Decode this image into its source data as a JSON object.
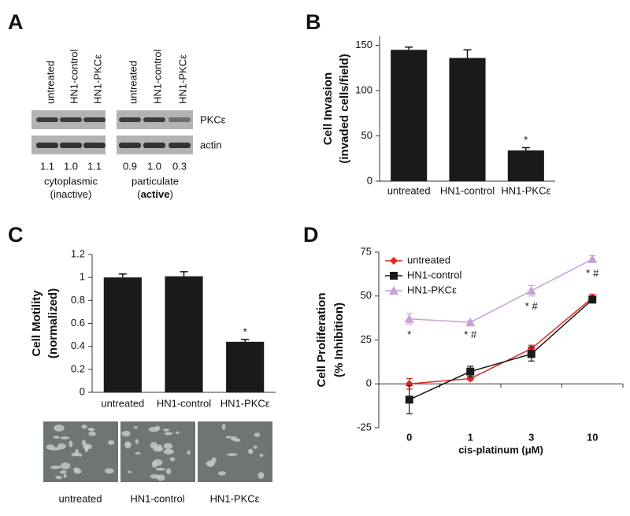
{
  "blot": {
    "panel": "A",
    "lanes": [
      "untreated",
      "HN1-control",
      "HN1-PKCε",
      "untreated",
      "HN1-control",
      "HN1-PKCε"
    ],
    "rows": [
      "PKCε",
      "actin"
    ],
    "ratios": [
      "1.1",
      "1.0",
      "1.1",
      "0.9",
      "1.0",
      "0.3"
    ],
    "groups": [
      {
        "name": "cytoplasmic",
        "state": [
          {
            "text": "(inactive)",
            "bold": false
          }
        ]
      },
      {
        "name": "particulate",
        "state": [
          {
            "text": "(",
            "bold": false
          },
          {
            "text": "active",
            "bold": true
          },
          {
            "text": ")",
            "bold": false
          }
        ]
      }
    ]
  },
  "chart_data": [
    {
      "type": "bar",
      "panel": "B",
      "ylabel": [
        "Cell Invasion",
        "(invaded cells/field)"
      ],
      "categories": [
        "untreated",
        "HN1-control",
        "HN1-PKCε"
      ],
      "values": [
        145,
        136,
        34
      ],
      "errors": [
        3,
        9,
        3
      ],
      "annotations": [
        null,
        null,
        "*"
      ],
      "color": "#1a1a1a",
      "ylim": [
        0,
        160
      ],
      "yticks": [
        0,
        50,
        100,
        150
      ]
    },
    {
      "type": "bar",
      "panel": "C",
      "ylabel": [
        "Cell Motility",
        "(normalized)"
      ],
      "categories": [
        "untreated",
        "HN1-control",
        "HN1-PKCε"
      ],
      "values": [
        1.0,
        1.01,
        0.44
      ],
      "errors": [
        0.03,
        0.04,
        0.02
      ],
      "annotations": [
        null,
        null,
        "*"
      ],
      "color": "#1a1a1a",
      "ylim": [
        0,
        1.2
      ],
      "yticks": [
        0,
        0.2,
        0.4,
        0.6,
        0.8,
        1,
        1.2
      ]
    },
    {
      "type": "line",
      "panel": "D",
      "ylabel": [
        "Cell Proliferation",
        "(% Inhibition)"
      ],
      "xlabel": "cis-platinum (μM)",
      "categories": [
        "0",
        "1",
        "3",
        "10"
      ],
      "ylim": [
        -25,
        75
      ],
      "yticks": [
        -25,
        0,
        25,
        50,
        75
      ],
      "legend": "upper left",
      "series": [
        {
          "name": "untreated",
          "color": "#e3261e",
          "marker": "diamond",
          "values": [
            0,
            3,
            20,
            49
          ],
          "errors": [
            3,
            1,
            2,
            2
          ]
        },
        {
          "name": "HN1-control",
          "color": "#1a1a1a",
          "marker": "square",
          "values": [
            -9,
            7,
            17,
            48
          ],
          "errors": [
            8,
            3,
            4,
            2
          ]
        },
        {
          "name": "HN1-PKCε",
          "color": "#c8a2d6",
          "marker": "triangle",
          "values": [
            37,
            35,
            53,
            71
          ],
          "errors": [
            3,
            1,
            3,
            2
          ],
          "annotations": [
            "*",
            "* #",
            "* #",
            "* #"
          ]
        }
      ]
    }
  ],
  "micrographs": {
    "captions": [
      "untreated",
      "HN1-control",
      "HN1-PKCε"
    ]
  }
}
